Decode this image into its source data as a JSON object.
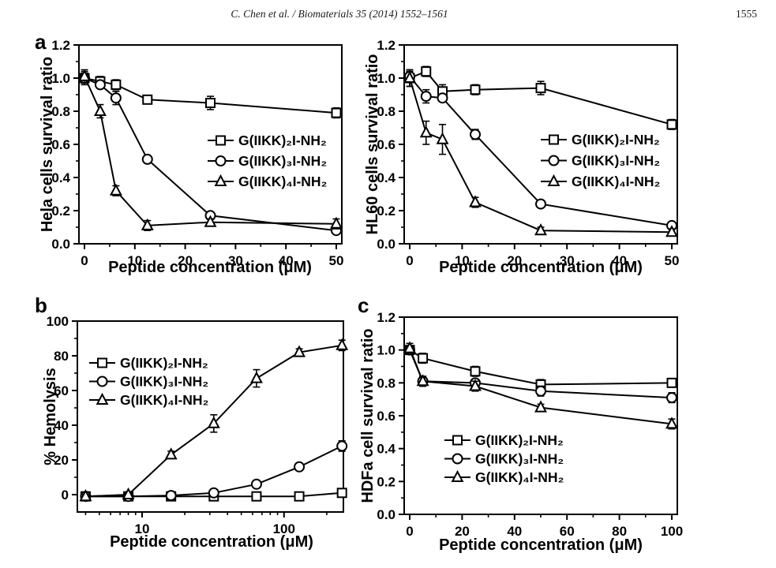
{
  "header": {
    "citation": "C. Chen et al. / Biomaterials 35 (2014) 1552–1561",
    "page_number": "1555"
  },
  "figure": {
    "ink_color": "#000000",
    "background": "#ffffff",
    "panels": [
      {
        "letter": "a"
      },
      {
        "letter": "b"
      },
      {
        "letter": "c"
      }
    ],
    "series_labels": [
      "G(IIKK)₂I-NH₂",
      "G(IIKK)₃I-NH₂",
      "G(IIKK)₄I-NH₂"
    ],
    "marker_shapes": [
      "square",
      "circle",
      "triangle"
    ]
  },
  "chart_data": [
    {
      "id": "hela",
      "panel": "a",
      "type": "line",
      "xscale": "linear",
      "xlabel": "Peptide concentration (μM)",
      "ylabel": "Hela cells survival ratio",
      "xlim": [
        0,
        50
      ],
      "ylim": [
        0,
        1.2
      ],
      "xticks": [
        0,
        10,
        20,
        30,
        40,
        50
      ],
      "xtick_labels": [
        "0",
        "10",
        "20",
        "30",
        "40",
        "50"
      ],
      "xminor": [
        5,
        15,
        25,
        35,
        45
      ],
      "yticks": [
        0.0,
        0.2,
        0.4,
        0.6,
        0.8,
        1.0,
        1.2
      ],
      "ytick_labels": [
        "0.0",
        "0.2",
        "0.4",
        "0.6",
        "0.8",
        "1.0",
        "1.2"
      ],
      "yminor": [
        0.1,
        0.3,
        0.5,
        0.7,
        0.9,
        1.1
      ],
      "x": [
        0,
        3.125,
        6.25,
        12.5,
        25,
        50
      ],
      "series": [
        {
          "name": "G(IIKK)₂I-NH₂",
          "marker": "square",
          "values": [
            1.0,
            0.98,
            0.96,
            0.87,
            0.85,
            0.79
          ],
          "errors": [
            0.04,
            0.03,
            0.03,
            0.02,
            0.04,
            0.03
          ]
        },
        {
          "name": "G(IIKK)₃I-NH₂",
          "marker": "circle",
          "values": [
            1.0,
            0.96,
            0.88,
            0.51,
            0.17,
            0.08
          ],
          "errors": [
            0.03,
            0.02,
            0.04,
            0.02,
            0.02,
            0.02
          ]
        },
        {
          "name": "G(IIKK)₄I-NH₂",
          "marker": "triangle",
          "values": [
            1.01,
            0.8,
            0.32,
            0.11,
            0.13,
            0.12
          ],
          "errors": [
            0.04,
            0.04,
            0.03,
            0.03,
            0.02,
            0.03
          ]
        }
      ],
      "legend_position": "center-right",
      "grid": false
    },
    {
      "id": "hl60",
      "panel": "a",
      "type": "line",
      "xscale": "linear",
      "xlabel": "Peptide concentration (μM)",
      "ylabel": "HL60 cells survival ratio",
      "xlim": [
        0,
        50
      ],
      "ylim": [
        0,
        1.2
      ],
      "xticks": [
        0,
        10,
        20,
        30,
        40,
        50
      ],
      "xtick_labels": [
        "0",
        "10",
        "20",
        "30",
        "40",
        "50"
      ],
      "xminor": [
        5,
        15,
        25,
        35,
        45
      ],
      "yticks": [
        0.0,
        0.2,
        0.4,
        0.6,
        0.8,
        1.0,
        1.2
      ],
      "ytick_labels": [
        "0.0",
        "0.2",
        "0.4",
        "0.6",
        "0.8",
        "1.0",
        "1.2"
      ],
      "yminor": [
        0.1,
        0.3,
        0.5,
        0.7,
        0.9,
        1.1
      ],
      "x": [
        0,
        3.125,
        6.25,
        12.5,
        25,
        50
      ],
      "series": [
        {
          "name": "G(IIKK)₂I-NH₂",
          "marker": "square",
          "values": [
            1.0,
            1.04,
            0.92,
            0.93,
            0.94,
            0.72
          ],
          "errors": [
            0.05,
            0.03,
            0.04,
            0.03,
            0.04,
            0.03
          ]
        },
        {
          "name": "G(IIKK)₃I-NH₂",
          "marker": "circle",
          "values": [
            1.01,
            0.89,
            0.88,
            0.66,
            0.24,
            0.11
          ],
          "errors": [
            0.03,
            0.04,
            0.02,
            0.03,
            0.01,
            0.02
          ]
        },
        {
          "name": "G(IIKK)₄I-NH₂",
          "marker": "triangle",
          "values": [
            1.0,
            0.67,
            0.63,
            0.25,
            0.08,
            0.07
          ],
          "errors": [
            0.05,
            0.07,
            0.09,
            0.03,
            0.02,
            0.02
          ]
        }
      ],
      "legend_position": "center-right",
      "grid": false
    },
    {
      "id": "hemolysis",
      "panel": "b",
      "type": "line",
      "xscale": "log",
      "xlabel": "Peptide concentration (μM)",
      "ylabel": "% Hemolysis",
      "xlim": [
        3.5,
        262
      ],
      "ylim": [
        -10,
        100
      ],
      "xticks": [
        10,
        100
      ],
      "xtick_labels": [
        "10",
        "100"
      ],
      "xminor": [
        4,
        5,
        6,
        7,
        8,
        9,
        20,
        30,
        40,
        50,
        60,
        70,
        80,
        90,
        200
      ],
      "yticks": [
        0,
        20,
        40,
        60,
        80,
        100
      ],
      "ytick_labels": [
        "0",
        "20",
        "40",
        "60",
        "80",
        "100"
      ],
      "yminor": [
        10,
        30,
        50,
        70,
        90
      ],
      "x": [
        4,
        8,
        16,
        32,
        64,
        128,
        256
      ],
      "series": [
        {
          "name": "G(IIKK)₂I-NH₂",
          "marker": "square",
          "values": [
            -1,
            -1,
            -1,
            -1,
            -1,
            -1,
            1
          ],
          "errors": [
            1,
            1,
            1,
            1,
            1,
            1,
            2
          ]
        },
        {
          "name": "G(IIKK)₃I-NH₂",
          "marker": "circle",
          "values": [
            -1,
            -1,
            -0.5,
            1,
            6,
            16,
            28
          ],
          "errors": [
            1,
            1,
            1,
            2,
            1,
            1,
            3
          ]
        },
        {
          "name": "G(IIKK)₄I-NH₂",
          "marker": "triangle",
          "values": [
            -1,
            0,
            23,
            41,
            67,
            82,
            86
          ],
          "errors": [
            1,
            1,
            2,
            5,
            5,
            2,
            3
          ]
        }
      ],
      "legend_position": "top-left",
      "grid": false
    },
    {
      "id": "hdfa",
      "panel": "c",
      "type": "line",
      "xscale": "linear",
      "xlabel": "Peptide concentration (μM)",
      "ylabel": "HDFa cell survival ratio",
      "xlim": [
        0,
        100
      ],
      "ylim": [
        0,
        1.2
      ],
      "xticks": [
        0,
        20,
        40,
        60,
        80,
        100
      ],
      "xtick_labels": [
        "0",
        "20",
        "40",
        "60",
        "80",
        "100"
      ],
      "xminor": [
        10,
        30,
        50,
        70,
        90
      ],
      "yticks": [
        0.0,
        0.2,
        0.4,
        0.6,
        0.8,
        1.0,
        1.2
      ],
      "ytick_labels": [
        "0.0",
        "0.2",
        "0.4",
        "0.6",
        "0.8",
        "1.0",
        "1.2"
      ],
      "yminor": [
        0.1,
        0.3,
        0.5,
        0.7,
        0.9,
        1.1
      ],
      "x": [
        0,
        5,
        25,
        50,
        100
      ],
      "series": [
        {
          "name": "G(IIKK)₂I-NH₂",
          "marker": "square",
          "values": [
            1.0,
            0.95,
            0.87,
            0.79,
            0.8
          ],
          "errors": [
            0.02,
            0.03,
            0.03,
            0.03,
            0.02
          ]
        },
        {
          "name": "G(IIKK)₃I-NH₂",
          "marker": "circle",
          "values": [
            1.0,
            0.81,
            0.8,
            0.75,
            0.71
          ],
          "errors": [
            0.02,
            0.03,
            0.02,
            0.03,
            0.03
          ]
        },
        {
          "name": "G(IIKK)₄I-NH₂",
          "marker": "triangle",
          "values": [
            1.01,
            0.81,
            0.78,
            0.65,
            0.55
          ],
          "errors": [
            0.03,
            0.03,
            0.03,
            0.02,
            0.03
          ]
        }
      ],
      "legend_position": "bottom-center",
      "grid": false
    }
  ]
}
